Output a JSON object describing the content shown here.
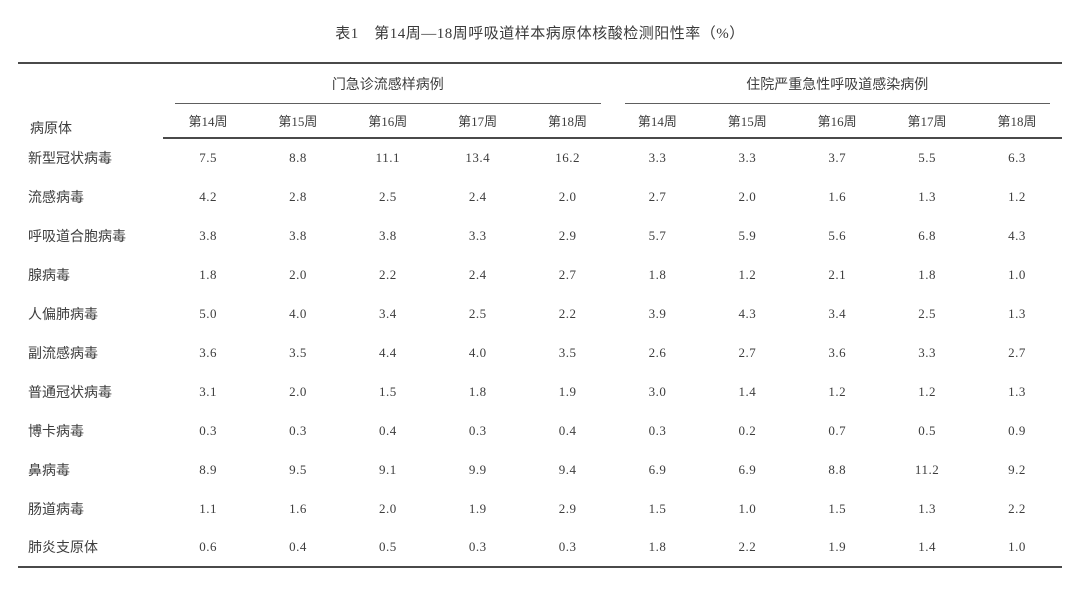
{
  "table": {
    "title": "表1　第14周—18周呼吸道样本病原体核酸检测阳性率（%）",
    "pathogen_header": "病原体",
    "groups": [
      {
        "label": "门急诊流感样病例",
        "weeks": [
          "第14周",
          "第15周",
          "第16周",
          "第17周",
          "第18周"
        ]
      },
      {
        "label": "住院严重急性呼吸道感染病例",
        "weeks": [
          "第14周",
          "第15周",
          "第16周",
          "第17周",
          "第18周"
        ]
      }
    ],
    "rows": [
      {
        "pathogen": "新型冠状病毒",
        "outpatient": [
          "7.5",
          "8.8",
          "11.1",
          "13.4",
          "16.2"
        ],
        "inpatient": [
          "3.3",
          "3.3",
          "3.7",
          "5.5",
          "6.3"
        ]
      },
      {
        "pathogen": "流感病毒",
        "outpatient": [
          "4.2",
          "2.8",
          "2.5",
          "2.4",
          "2.0"
        ],
        "inpatient": [
          "2.7",
          "2.0",
          "1.6",
          "1.3",
          "1.2"
        ]
      },
      {
        "pathogen": "呼吸道合胞病毒",
        "outpatient": [
          "3.8",
          "3.8",
          "3.8",
          "3.3",
          "2.9"
        ],
        "inpatient": [
          "5.7",
          "5.9",
          "5.6",
          "6.8",
          "4.3"
        ]
      },
      {
        "pathogen": "腺病毒",
        "outpatient": [
          "1.8",
          "2.0",
          "2.2",
          "2.4",
          "2.7"
        ],
        "inpatient": [
          "1.8",
          "1.2",
          "2.1",
          "1.8",
          "1.0"
        ]
      },
      {
        "pathogen": "人偏肺病毒",
        "outpatient": [
          "5.0",
          "4.0",
          "3.4",
          "2.5",
          "2.2"
        ],
        "inpatient": [
          "3.9",
          "4.3",
          "3.4",
          "2.5",
          "1.3"
        ]
      },
      {
        "pathogen": "副流感病毒",
        "outpatient": [
          "3.6",
          "3.5",
          "4.4",
          "4.0",
          "3.5"
        ],
        "inpatient": [
          "2.6",
          "2.7",
          "3.6",
          "3.3",
          "2.7"
        ]
      },
      {
        "pathogen": "普通冠状病毒",
        "outpatient": [
          "3.1",
          "2.0",
          "1.5",
          "1.8",
          "1.9"
        ],
        "inpatient": [
          "3.0",
          "1.4",
          "1.2",
          "1.2",
          "1.3"
        ]
      },
      {
        "pathogen": "博卡病毒",
        "outpatient": [
          "0.3",
          "0.3",
          "0.4",
          "0.3",
          "0.4"
        ],
        "inpatient": [
          "0.3",
          "0.2",
          "0.7",
          "0.5",
          "0.9"
        ]
      },
      {
        "pathogen": "鼻病毒",
        "outpatient": [
          "8.9",
          "9.5",
          "9.1",
          "9.9",
          "9.4"
        ],
        "inpatient": [
          "6.9",
          "6.9",
          "8.8",
          "11.2",
          "9.2"
        ]
      },
      {
        "pathogen": "肠道病毒",
        "outpatient": [
          "1.1",
          "1.6",
          "2.0",
          "1.9",
          "2.9"
        ],
        "inpatient": [
          "1.5",
          "1.0",
          "1.5",
          "1.3",
          "2.2"
        ]
      },
      {
        "pathogen": "肺炎支原体",
        "outpatient": [
          "0.6",
          "0.4",
          "0.5",
          "0.3",
          "0.3"
        ],
        "inpatient": [
          "1.8",
          "2.2",
          "1.9",
          "1.4",
          "1.0"
        ]
      }
    ],
    "colors": {
      "text": "#3d3d3d",
      "rule_heavy": "#4a4a4a",
      "rule_light": "#5e5e5e",
      "background": "#ffffff"
    }
  }
}
